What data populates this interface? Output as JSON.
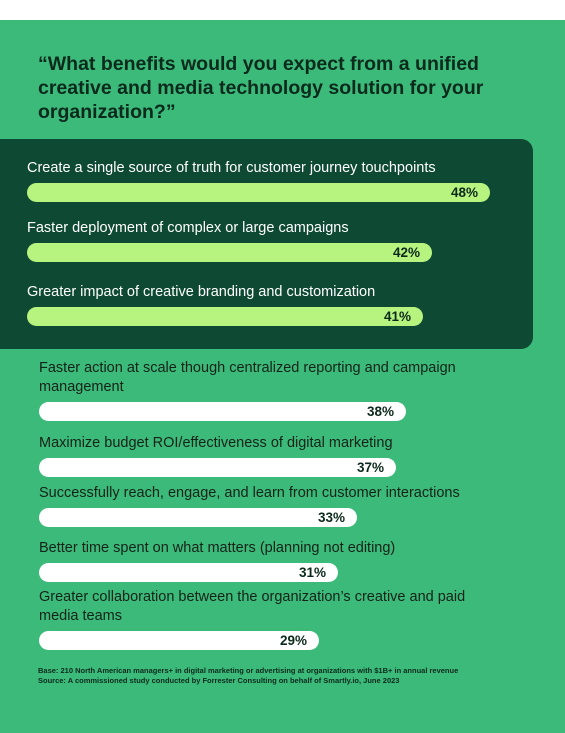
{
  "title": "“What benefits would you expect from a unified creative and media technology solution for your organization?”",
  "chart_data": {
    "type": "bar",
    "orientation": "horizontal",
    "title": "“What benefits would you expect from a unified creative and media technology solution for your organization?”",
    "categories": [
      "Create a single source of truth for customer journey touchpoints",
      "Faster deployment of complex or large campaigns",
      "Greater impact of creative branding and customization",
      "Faster action at scale though centralized reporting and campaign management",
      "Maximize budget ROI/effectiveness of digital marketing",
      "Successfully reach, engage, and learn from customer interactions",
      "Better time spent on what matters (planning not editing)",
      "Greater collaboration between the organization’s creative and paid media teams"
    ],
    "values": [
      48,
      42,
      41,
      38,
      37,
      33,
      31,
      29
    ],
    "value_labels": [
      "48%",
      "42%",
      "41%",
      "38%",
      "37%",
      "33%",
      "31%",
      "29%"
    ],
    "unit": "%",
    "highlighted_top_n": 3,
    "colors": {
      "background": "#3cba7a",
      "highlight_panel": "#0e4a33",
      "highlight_bar": "#b7f37f",
      "standard_bar": "#ffffff"
    }
  },
  "footnote": {
    "base": "Base: 210 North American managers+ in digital marketing or advertising at organizations with $1B+ in annual revenue",
    "source": "Source: A commissioned study conducted by Forrester Consulting on behalf of Smartly.io, June 2023"
  }
}
